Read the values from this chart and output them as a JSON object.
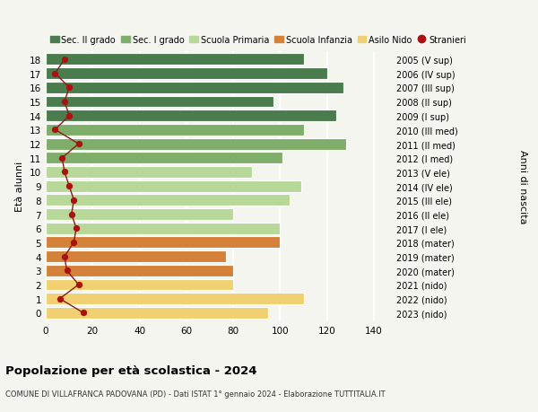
{
  "ages": [
    18,
    17,
    16,
    15,
    14,
    13,
    12,
    11,
    10,
    9,
    8,
    7,
    6,
    5,
    4,
    3,
    2,
    1,
    0
  ],
  "right_labels": [
    "2005 (V sup)",
    "2006 (IV sup)",
    "2007 (III sup)",
    "2008 (II sup)",
    "2009 (I sup)",
    "2010 (III med)",
    "2011 (II med)",
    "2012 (I med)",
    "2013 (V ele)",
    "2014 (IV ele)",
    "2015 (III ele)",
    "2016 (II ele)",
    "2017 (I ele)",
    "2018 (mater)",
    "2019 (mater)",
    "2020 (mater)",
    "2021 (nido)",
    "2022 (nido)",
    "2023 (nido)"
  ],
  "bar_values": [
    110,
    120,
    127,
    97,
    124,
    110,
    128,
    101,
    88,
    109,
    104,
    80,
    100,
    100,
    77,
    80,
    80,
    110,
    95
  ],
  "bar_colors": [
    "#4a7c4e",
    "#4a7c4e",
    "#4a7c4e",
    "#4a7c4e",
    "#4a7c4e",
    "#7fae6b",
    "#7fae6b",
    "#7fae6b",
    "#b8d89a",
    "#b8d89a",
    "#b8d89a",
    "#b8d89a",
    "#b8d89a",
    "#d4823a",
    "#d4823a",
    "#d4823a",
    "#f0d070",
    "#f0d070",
    "#f0d070"
  ],
  "stranieri_values": [
    8,
    4,
    10,
    8,
    10,
    4,
    14,
    7,
    8,
    10,
    12,
    11,
    13,
    12,
    8,
    9,
    14,
    6,
    16
  ],
  "legend_labels": [
    "Sec. II grado",
    "Sec. I grado",
    "Scuola Primaria",
    "Scuola Infanzia",
    "Asilo Nido",
    "Stranieri"
  ],
  "legend_colors": [
    "#4a7c4e",
    "#7fae6b",
    "#b8d89a",
    "#d4823a",
    "#f0d070",
    "#cc2222"
  ],
  "ylabel_left": "Età alunni",
  "ylabel_right": "Anni di nascita",
  "xlim": [
    0,
    148
  ],
  "xticks": [
    0,
    20,
    40,
    60,
    80,
    100,
    120,
    140
  ],
  "title_main": "Popolazione per età scolastica - 2024",
  "title_sub": "COMUNE DI VILLAFRANCA PADOVANA (PD) - Dati ISTAT 1° gennaio 2024 - Elaborazione TUTTITALIA.IT",
  "background_color": "#f5f5f0",
  "bar_height": 0.82,
  "line_color": "#8b1a1a",
  "dot_color": "#aa1111"
}
